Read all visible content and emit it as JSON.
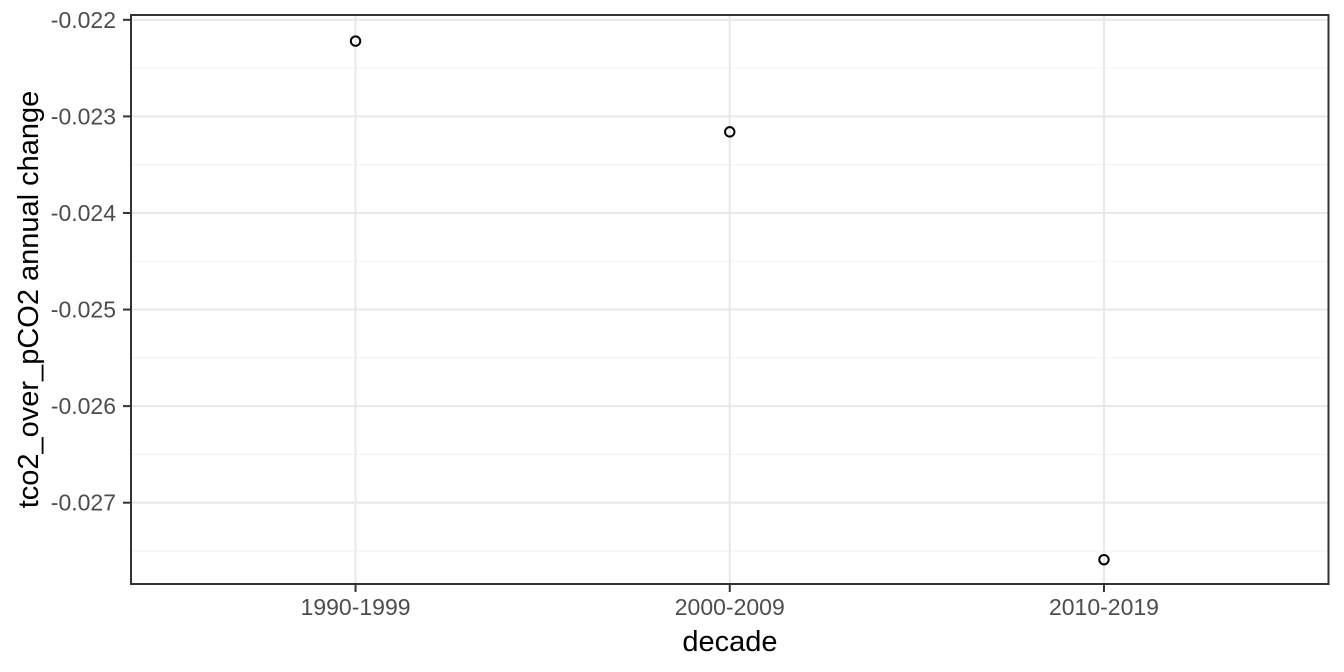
{
  "chart_data": {
    "type": "scatter",
    "title": "",
    "xlabel": "decade",
    "ylabel": "tco2_over_pCO2 annual change",
    "categories": [
      "1990-1999",
      "2000-2009",
      "2010-2019"
    ],
    "series": [
      {
        "name": "tco2_over_pCO2 annual change by decade",
        "values": [
          -0.02222,
          -0.02316,
          -0.02759
        ]
      }
    ],
    "y_ticks": [
      -0.022,
      -0.023,
      -0.024,
      -0.025,
      -0.026,
      -0.027
    ],
    "y_tick_labels": [
      "-0.022",
      "-0.023",
      "-0.024",
      "-0.025",
      "-0.026",
      "-0.027"
    ],
    "y_minor_ticks": [
      -0.0225,
      -0.0235,
      -0.0245,
      -0.0255,
      -0.0265,
      -0.0275
    ],
    "ylim": [
      -0.027842,
      -0.02195
    ],
    "grid": "horizontal major+minor, vertical major at each category",
    "legend": "none",
    "marker": "open-circle",
    "colors": {
      "background": "#ffffff",
      "panel_background": "#ffffff",
      "panel_border": "#333333",
      "grid_major": "#e8e8e8",
      "grid_minor": "#f2f2f2",
      "tick_mark": "#333333",
      "tick_label": "#4d4d4d",
      "axis_title": "#000000",
      "marker_stroke": "#000000"
    }
  }
}
